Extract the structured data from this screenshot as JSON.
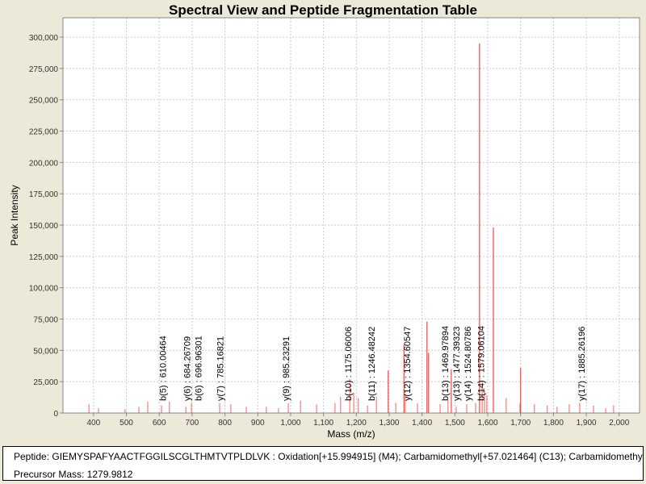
{
  "chart_data": {
    "type": "bar",
    "title": "Spectral View and Peptide Fragmentation Table",
    "xlabel": "Mass (m/z)",
    "ylabel": "Peak Intensity",
    "xlim": [
      307,
      2062
    ],
    "ylim": [
      0,
      315500
    ],
    "grid": true,
    "x_ticks": [
      400,
      500,
      600,
      700,
      800,
      900,
      1000,
      1100,
      1200,
      1300,
      1400,
      1500,
      1600,
      1700,
      1800,
      1900,
      2000
    ],
    "x_tick_labels": [
      "400",
      "500",
      "600",
      "700",
      "800",
      "900",
      "1,000",
      "1,100",
      "1,200",
      "1,300",
      "1,400",
      "1,500",
      "1,600",
      "1,700",
      "1,800",
      "1,900",
      "2,000"
    ],
    "y_ticks": [
      0,
      25000,
      50000,
      75000,
      100000,
      125000,
      150000,
      175000,
      200000,
      225000,
      250000,
      275000,
      300000
    ],
    "y_tick_labels": [
      "0",
      "25,000",
      "50,000",
      "75,000",
      "100,000",
      "125,000",
      "150,000",
      "175,000",
      "200,000",
      "225,000",
      "250,000",
      "275,000",
      "300,000"
    ],
    "peaks": [
      [
        386,
        7000
      ],
      [
        415,
        4000
      ],
      [
        496,
        3000
      ],
      [
        538,
        5000
      ],
      [
        565,
        9000
      ],
      [
        607,
        6000
      ],
      [
        631,
        9000
      ],
      [
        681,
        5000
      ],
      [
        698,
        8000
      ],
      [
        784,
        8000
      ],
      [
        818,
        7000
      ],
      [
        865,
        5000
      ],
      [
        926,
        5000
      ],
      [
        963,
        4000
      ],
      [
        993,
        8000
      ],
      [
        1030,
        10000
      ],
      [
        1079,
        7000
      ],
      [
        1135,
        8000
      ],
      [
        1152,
        13000
      ],
      [
        1180,
        27000
      ],
      [
        1192,
        16000
      ],
      [
        1206,
        12000
      ],
      [
        1234,
        6000
      ],
      [
        1261,
        13000
      ],
      [
        1297,
        34000
      ],
      [
        1320,
        8000
      ],
      [
        1345,
        55000
      ],
      [
        1349,
        15000
      ],
      [
        1386,
        8000
      ],
      [
        1415,
        73000
      ],
      [
        1420,
        48000
      ],
      [
        1455,
        7000
      ],
      [
        1479,
        10000
      ],
      [
        1489,
        35000
      ],
      [
        1504,
        5000
      ],
      [
        1536,
        7000
      ],
      [
        1563,
        8000
      ],
      [
        1575,
        295000
      ],
      [
        1583,
        25000
      ],
      [
        1590,
        18000
      ],
      [
        1597,
        14000
      ],
      [
        1617,
        148000
      ],
      [
        1656,
        12000
      ],
      [
        1698,
        8000
      ],
      [
        1700,
        36000
      ],
      [
        1742,
        7000
      ],
      [
        1781,
        6000
      ],
      [
        1811,
        5000
      ],
      [
        1848,
        7000
      ],
      [
        1880,
        8000
      ],
      [
        1922,
        6000
      ],
      [
        1959,
        4000
      ],
      [
        1983,
        6000
      ]
    ],
    "annotations": [
      {
        "mass": 610.00464,
        "label": "b(5) : 610.00464"
      },
      {
        "mass": 684.26709,
        "label": "y(6) : 684.26709"
      },
      {
        "mass": 696.96301,
        "label": "b(6) : 696.96301"
      },
      {
        "mass": 785.16821,
        "label": "y(7) : 785.16821"
      },
      {
        "mass": 985.23291,
        "label": "y(9) : 985.23291"
      },
      {
        "mass": 1175.06006,
        "label": "b(10) : 1175.06006"
      },
      {
        "mass": 1246.48242,
        "label": "b(11) : 1246.48242"
      },
      {
        "mass": 1354.60547,
        "label": "y(12) : 1354.60547"
      },
      {
        "mass": 1469.97894,
        "label": "b(13) : 1469.97894"
      },
      {
        "mass": 1477.39323,
        "label": "y(13) : 1477.39323"
      },
      {
        "mass": 1524.80786,
        "label": "y(14) : 1524.80786"
      },
      {
        "mass": 1579.06104,
        "label": "b(14) : 1579.06104"
      },
      {
        "mass": 1885.26196,
        "label": "y(17) : 1885.26196"
      }
    ],
    "peak_color": "#ff4040"
  },
  "info": {
    "peptide": "Peptide: GIEMYSPAFYAACTFGGILSCGLTHMTVTPLDLVK : Oxidation[+15.994915] (M4); Carbamidomethyl[+57.021464] (C13); Carbamidomethyl",
    "precursor": "Precursor Mass: 1279.9812"
  }
}
